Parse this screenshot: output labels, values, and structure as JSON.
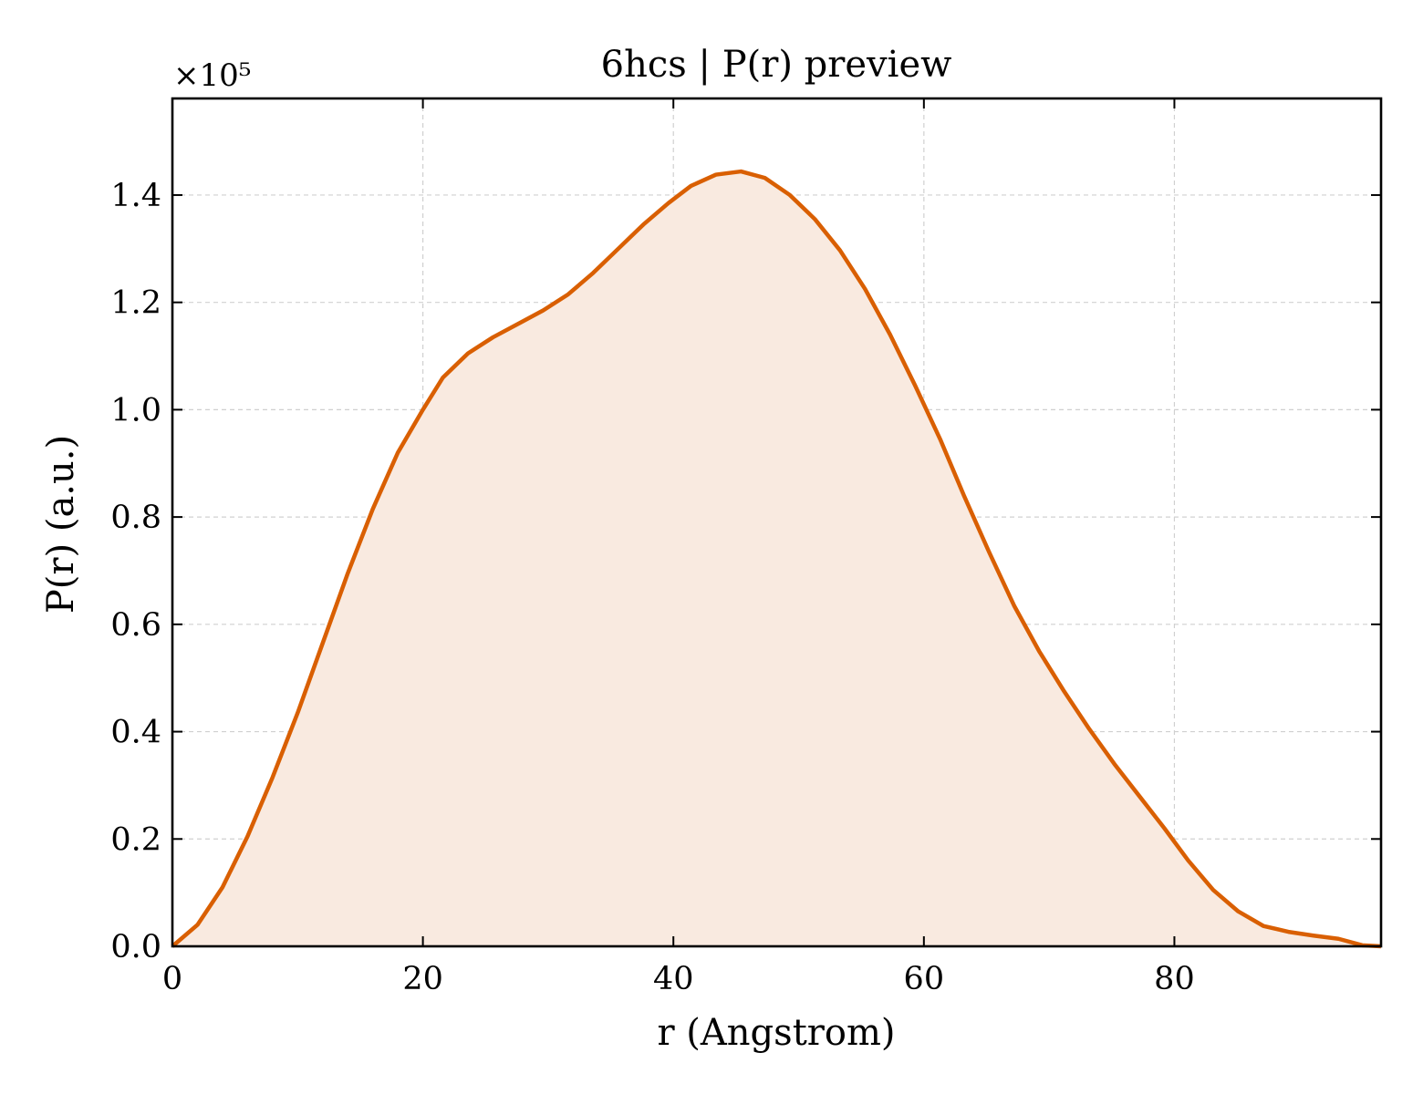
{
  "chart_data": {
    "type": "area",
    "title": "6hcs | P(r) preview",
    "xlabel": "r (Angstrom)",
    "ylabel": "P(r) (a.u.)",
    "y_multiplier_label": "×10⁵",
    "y_scale_factor": 100000,
    "xlim": [
      0,
      96.5
    ],
    "ylim": [
      0,
      158000
    ],
    "xticks": [
      0,
      20,
      40,
      60,
      80
    ],
    "yticks": [
      0,
      20000,
      40000,
      60000,
      80000,
      100000,
      120000,
      140000
    ],
    "xtick_labels": [
      "0",
      "20",
      "40",
      "60",
      "80"
    ],
    "ytick_labels": [
      "0.0",
      "0.2",
      "0.4",
      "0.6",
      "0.8",
      "1.0",
      "1.2",
      "1.4"
    ],
    "grid": true,
    "series": [
      {
        "color": "#d95f02",
        "fill_color": "#f9eae0",
        "x": [
          0,
          2,
          4,
          6,
          8,
          10,
          12,
          14,
          16,
          18,
          20,
          21.6,
          23.6,
          25.6,
          27.6,
          29.6,
          31.6,
          33.6,
          35.6,
          37.6,
          39.6,
          41.4,
          43.4,
          45.4,
          47.3,
          49.3,
          51.3,
          53.3,
          55.3,
          57.3,
          59.3,
          61.3,
          63.2,
          65.2,
          67.2,
          69.2,
          71.2,
          73.2,
          75.2,
          77.2,
          79.2,
          81.1,
          83.1,
          85.1,
          87.1,
          89.1,
          91.1,
          93.1,
          95.0,
          96.5
        ],
        "y": [
          0,
          4000,
          11000,
          20500,
          31500,
          43500,
          56500,
          69500,
          81500,
          92000,
          100000,
          106000,
          110500,
          113500,
          116000,
          118500,
          121500,
          125500,
          130000,
          134500,
          138500,
          141700,
          143800,
          144400,
          143200,
          140000,
          135500,
          129700,
          122500,
          114000,
          104500,
          94500,
          84000,
          73500,
          63500,
          55000,
          47500,
          40500,
          34000,
          28000,
          22000,
          16000,
          10500,
          6500,
          3800,
          2700,
          2000,
          1400,
          200,
          0
        ]
      }
    ]
  }
}
